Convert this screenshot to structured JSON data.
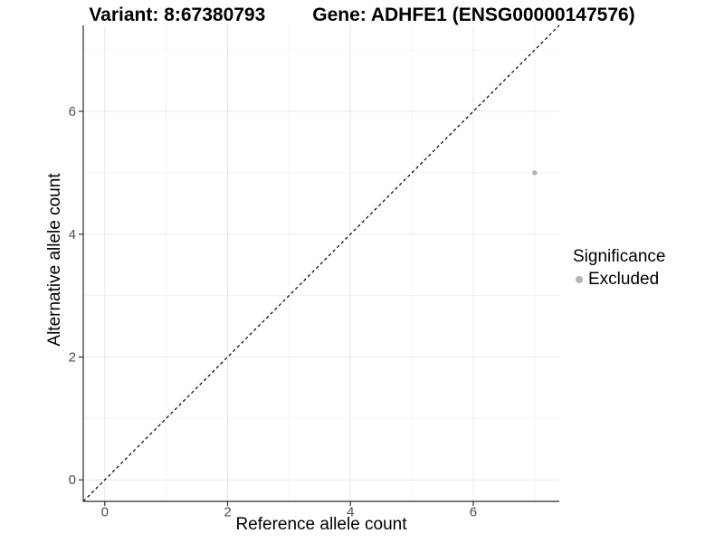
{
  "chart_data": {
    "type": "scatter",
    "title_left": "Variant: 8:67380793",
    "title_right": "Gene: ADHFE1 (ENSG00000147576)",
    "xlabel": "Reference allele count",
    "ylabel": "Alternative allele count",
    "xlim": [
      -0.35,
      7.4
    ],
    "ylim": [
      -0.35,
      7.4
    ],
    "x_ticks": [
      0,
      2,
      4,
      6
    ],
    "y_ticks": [
      0,
      2,
      4,
      6
    ],
    "x_minor_ticks": [
      1,
      3,
      5,
      7
    ],
    "y_minor_ticks": [
      1,
      3,
      5,
      7
    ],
    "grid": true,
    "series": [
      {
        "name": "Excluded",
        "points": [
          {
            "x": 7,
            "y": 5
          }
        ],
        "color": "#b3b3b3",
        "marker": "circle",
        "marker_radius": 2.7
      }
    ],
    "reference_line": {
      "type": "identity",
      "style": "dashed",
      "color": "#000000"
    },
    "legend_position": "right"
  },
  "legend": {
    "title": "Significance",
    "entries": [
      {
        "label": "Excluded",
        "color": "#b3b3b3"
      }
    ]
  },
  "colors": {
    "background": "#ffffff",
    "axis_line": "#2b2b2b",
    "tick_mark": "#333333",
    "tick_text": "#4d4d4d",
    "grid_major": "#e8e8e8",
    "grid_minor": "#f3f3f3",
    "title_text": "#000000"
  }
}
